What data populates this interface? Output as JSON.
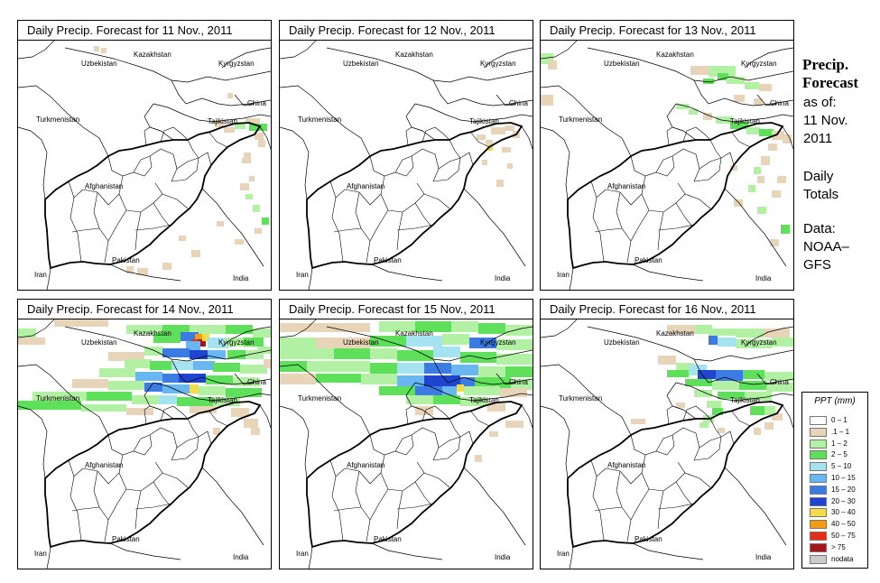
{
  "panels": [
    {
      "title": "Daily Precip. Forecast for  11 Nov., 2011",
      "precip": "d1"
    },
    {
      "title": "Daily Precip. Forecast for  12 Nov., 2011",
      "precip": "d2"
    },
    {
      "title": "Daily Precip. Forecast for  13 Nov., 2011",
      "precip": "d3"
    },
    {
      "title": "Daily Precip. Forecast for  14 Nov., 2011",
      "precip": "d4"
    },
    {
      "title": "Daily Precip. Forecast for  15 Nov., 2011",
      "precip": "d5"
    },
    {
      "title": "Daily Precip. Forecast for  16 Nov., 2011",
      "precip": "d6"
    }
  ],
  "map_labels": {
    "uzbekistan": "Uzbekistan",
    "kazakhstan": "Kazakhstan",
    "kyrgyzstan": "Kyrgyzstan",
    "china": "China",
    "turkmenistan": "Turkmenistan",
    "tajikistan": "Tajikistan",
    "afghanistan": "Afghanistan",
    "pakistan": "Pakistan",
    "iran": "Iran",
    "india": "India"
  },
  "sidebar": {
    "title_line1": "Precip.",
    "title_line2": "Forecast",
    "asof_line1": "as of:",
    "asof_line2": "11 Nov.",
    "asof_line3": "2011",
    "daily_line1": "Daily",
    "daily_line2": "Totals",
    "data_line1": "Data:",
    "data_line2": "NOAA–",
    "data_line3": "GFS"
  },
  "legend": {
    "title": "PPT (mm)",
    "items": [
      {
        "label": "0 – 1",
        "color": "#ffffff"
      },
      {
        "label": ".1 – 1",
        "color": "#e8d5b9"
      },
      {
        "label": "1 – 2",
        "color": "#b2f0a3"
      },
      {
        "label": "2 – 5",
        "color": "#5fe05b"
      },
      {
        "label": "5 – 10",
        "color": "#a6e3f0"
      },
      {
        "label": "10 – 15",
        "color": "#68b6f2"
      },
      {
        "label": "15 – 20",
        "color": "#3a7ce3"
      },
      {
        "label": "20 – 30",
        "color": "#1f44cf"
      },
      {
        "label": "30 – 40",
        "color": "#f4db4b"
      },
      {
        "label": "40 – 50",
        "color": "#f29a12"
      },
      {
        "label": "50 – 75",
        "color": "#e62b16"
      },
      {
        "label": "> 75",
        "color": "#a3161a"
      },
      {
        "label": "nodata",
        "color": "#cccccc"
      }
    ]
  }
}
